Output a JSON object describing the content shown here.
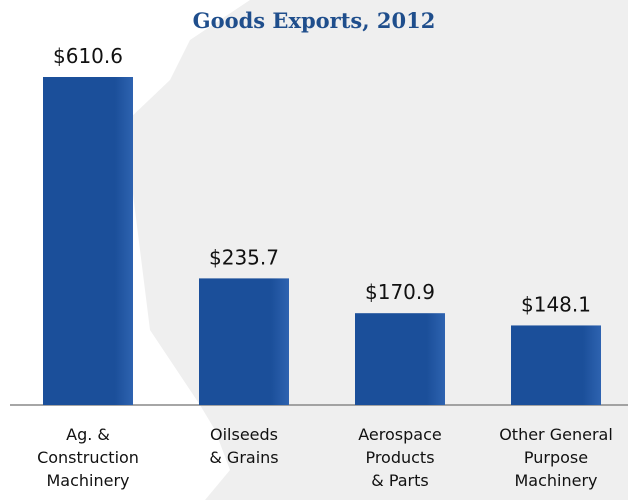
{
  "chart_data": {
    "type": "bar",
    "title": "Goods Exports, 2012",
    "categories": [
      "Ag. &\nConstruction\nMachinery",
      "Oilseeds\n& Grains",
      "Aerospace\nProducts\n& Parts",
      "Other General\nPurpose\nMachinery"
    ],
    "values": [
      610.6,
      235.7,
      170.9,
      148.1
    ],
    "value_labels": [
      "$610.6",
      "$235.7",
      "$170.9",
      "$148.1"
    ],
    "color": "#1b4f9a"
  }
}
